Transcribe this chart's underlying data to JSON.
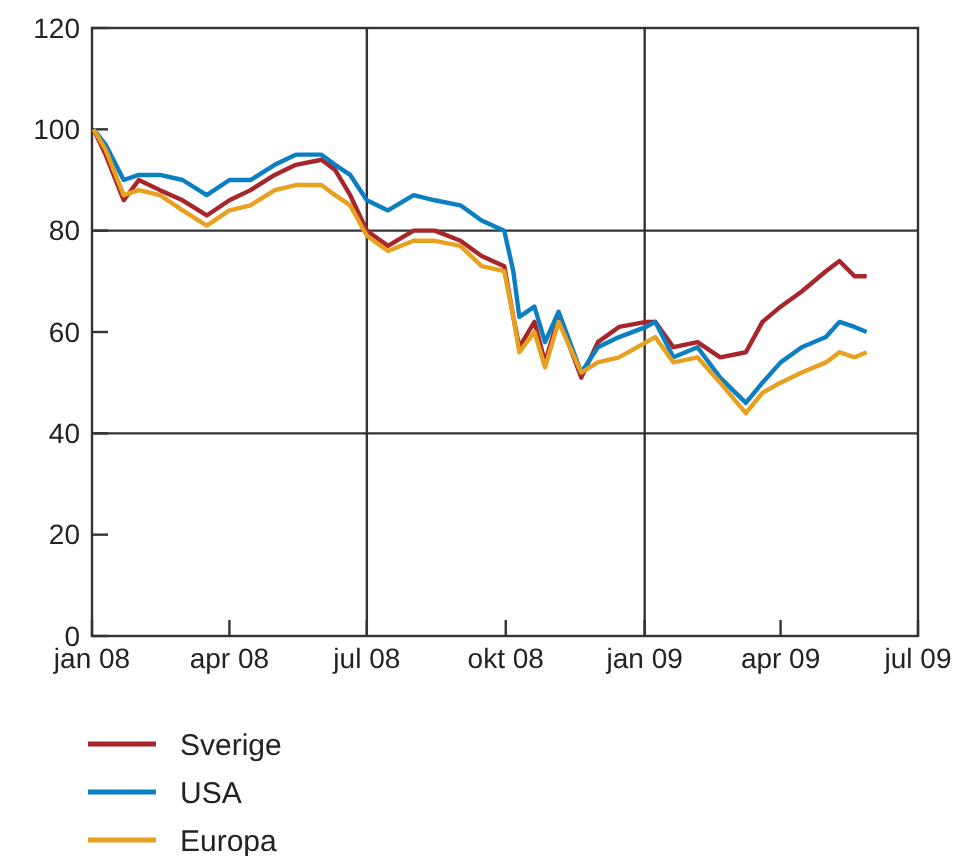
{
  "chart_data": {
    "type": "line",
    "x": [
      "2008-01-02",
      "2008-01-10",
      "2008-01-22",
      "2008-02-01",
      "2008-02-15",
      "2008-03-01",
      "2008-03-17",
      "2008-04-01",
      "2008-04-15",
      "2008-05-01",
      "2008-05-15",
      "2008-06-01",
      "2008-06-10",
      "2008-06-20",
      "2008-07-01",
      "2008-07-15",
      "2008-08-01",
      "2008-08-15",
      "2008-09-01",
      "2008-09-15",
      "2008-09-30",
      "2008-10-06",
      "2008-10-10",
      "2008-10-20",
      "2008-10-27",
      "2008-11-05",
      "2008-11-20",
      "2008-12-01",
      "2008-12-15",
      "2009-01-02",
      "2009-01-08",
      "2009-01-20",
      "2009-02-05",
      "2009-02-20",
      "2009-03-09",
      "2009-03-20",
      "2009-04-01",
      "2009-04-15",
      "2009-05-01",
      "2009-05-10",
      "2009-05-20",
      "2009-05-28"
    ],
    "series": [
      {
        "name": "Sverige",
        "color": "#a6262b",
        "values": [
          100,
          95,
          86,
          90,
          88,
          86,
          83,
          86,
          88,
          91,
          93,
          94,
          92,
          87,
          80,
          77,
          80,
          80,
          78,
          75,
          73,
          63,
          57,
          62,
          54,
          63,
          51,
          58,
          61,
          62,
          62,
          57,
          58,
          55,
          56,
          62,
          65,
          68,
          72,
          74,
          71,
          71
        ]
      },
      {
        "name": "USA",
        "color": "#0a7fc2",
        "values": [
          100,
          97,
          90,
          91,
          91,
          90,
          87,
          90,
          90,
          93,
          95,
          95,
          93,
          91,
          86,
          84,
          87,
          86,
          85,
          82,
          80,
          72,
          63,
          65,
          58,
          64,
          52,
          57,
          59,
          61,
          62,
          55,
          57,
          51,
          46,
          50,
          54,
          57,
          59,
          62,
          61,
          60
        ]
      },
      {
        "name": "Europa",
        "color": "#e8a020",
        "values": [
          100,
          96,
          87,
          88,
          87,
          84,
          81,
          84,
          85,
          88,
          89,
          89,
          87,
          85,
          79,
          76,
          78,
          78,
          77,
          73,
          72,
          63,
          56,
          60,
          53,
          62,
          52,
          54,
          55,
          58,
          59,
          54,
          55,
          50,
          44,
          48,
          50,
          52,
          54,
          56,
          55,
          56
        ]
      }
    ],
    "xlim": [
      "2008-01-01",
      "2009-07-01"
    ],
    "xticks": [
      {
        "value": "2008-01-01",
        "label": "jan 08"
      },
      {
        "value": "2008-04-01",
        "label": "apr 08"
      },
      {
        "value": "2008-07-01",
        "label": "jul 08"
      },
      {
        "value": "2008-10-01",
        "label": "okt 08"
      },
      {
        "value": "2009-01-01",
        "label": "jan 09"
      },
      {
        "value": "2009-04-01",
        "label": "apr 09"
      },
      {
        "value": "2009-07-01",
        "label": "jul 09"
      }
    ],
    "ylim": [
      0,
      120
    ],
    "yticks": [
      0,
      20,
      40,
      60,
      80,
      100,
      120
    ],
    "ref_lines": [
      {
        "axis": "y",
        "value": 40
      },
      {
        "axis": "y",
        "value": 80
      },
      {
        "axis": "x",
        "value": "2008-07-01"
      },
      {
        "axis": "x",
        "value": "2009-01-01"
      }
    ],
    "grid": false,
    "legend": "bottom",
    "line_style": "solid",
    "marker": "none"
  }
}
